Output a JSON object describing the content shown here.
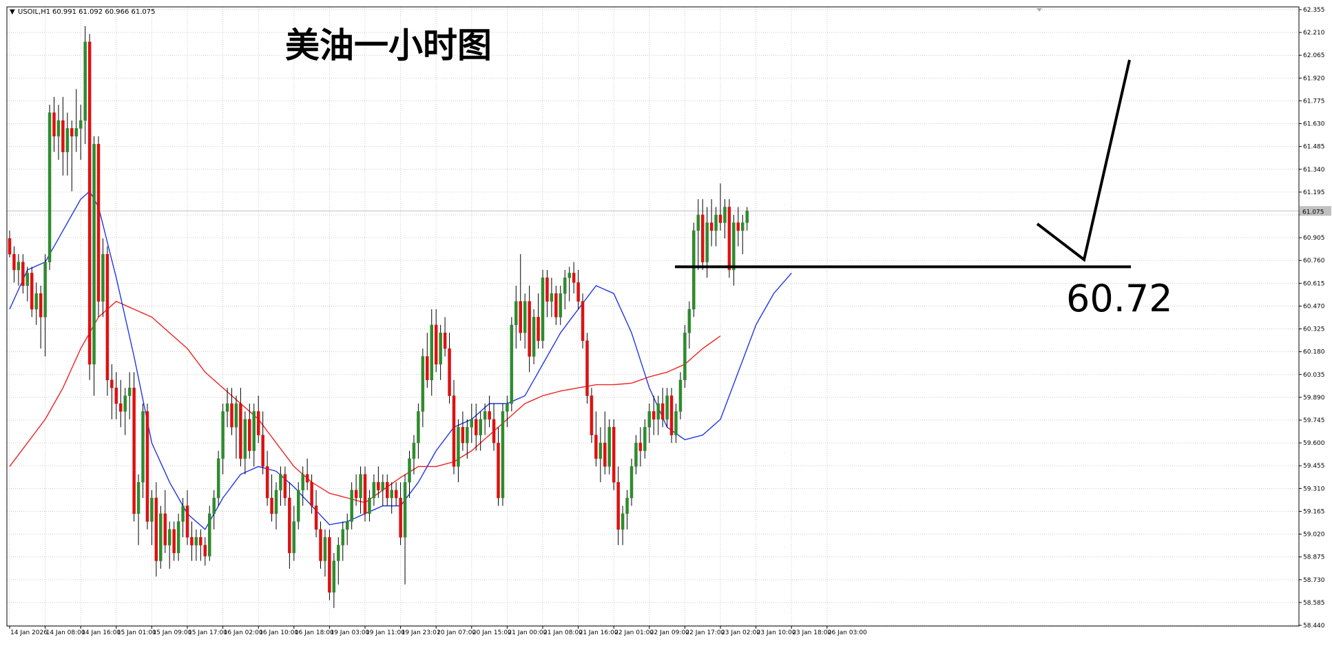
{
  "header": {
    "symbol": "USOIL,H1",
    "ohlc": "60.991 61.092 60.966 61.075",
    "title": "美油一小时图"
  },
  "annotation": {
    "level_label": "60.72",
    "level_value": 60.72
  },
  "colors": {
    "up": "#2e8b2e",
    "down": "#dd1111",
    "ma_fast": "#1f35e6",
    "ma_slow": "#ee2222",
    "grid": "#c9c9c9",
    "annotation": "#000000",
    "current_price_line": "#c0c0c0"
  },
  "chart_data": {
    "type": "candlestick",
    "timeframe": "H1",
    "ylim": [
      58.44,
      62.38
    ],
    "y_ticks": [
      62.355,
      62.21,
      62.065,
      61.92,
      61.775,
      61.63,
      61.485,
      61.34,
      61.195,
      61.05,
      60.905,
      60.76,
      60.615,
      60.47,
      60.325,
      60.18,
      60.035,
      59.89,
      59.745,
      59.6,
      59.455,
      59.31,
      59.165,
      59.02,
      58.875,
      58.73,
      58.585,
      58.44
    ],
    "y_tick_labels": [
      "62.355",
      "62.210",
      "62.065",
      "61.920",
      "61.775",
      "61.630",
      "61.485",
      "61.340",
      "61.195",
      "",
      "60.905",
      "60.760",
      "60.615",
      "60.470",
      "60.325",
      "60.180",
      "60.035",
      "59.890",
      "59.745",
      "59.600",
      "59.455",
      "59.310",
      "59.165",
      "59.020",
      "58.875",
      "58.730",
      "58.585",
      "58.440"
    ],
    "current_price": 61.075,
    "current_price_label": "61.075",
    "x_labels": [
      {
        "i": 0,
        "label": "14 Jan 2026"
      },
      {
        "i": 8,
        "label": "14 Jan 08:00"
      },
      {
        "i": 16,
        "label": "14 Jan 16:00"
      },
      {
        "i": 24,
        "label": "15 Jan 01:00"
      },
      {
        "i": 32,
        "label": "15 Jan 09:00"
      },
      {
        "i": 40,
        "label": "15 Jan 17:00"
      },
      {
        "i": 48,
        "label": "16 Jan 02:00"
      },
      {
        "i": 56,
        "label": "16 Jan 10:00"
      },
      {
        "i": 64,
        "label": "16 Jan 18:00"
      },
      {
        "i": 72,
        "label": "19 Jan 03:00"
      },
      {
        "i": 80,
        "label": "19 Jan 11:00"
      },
      {
        "i": 88,
        "label": "19 Jan 23:01"
      },
      {
        "i": 96,
        "label": "20 Jan 07:00"
      },
      {
        "i": 104,
        "label": "20 Jan 15:00"
      },
      {
        "i": 112,
        "label": "21 Jan 00:00"
      },
      {
        "i": 120,
        "label": "21 Jan 08:00"
      },
      {
        "i": 128,
        "label": "21 Jan 16:00"
      },
      {
        "i": 136,
        "label": "22 Jan 01:00"
      },
      {
        "i": 144,
        "label": "22 Jan 09:00"
      },
      {
        "i": 152,
        "label": "22 Jan 17:00"
      },
      {
        "i": 160,
        "label": "23 Jan 02:00"
      },
      {
        "i": 168,
        "label": "23 Jan 10:00"
      },
      {
        "i": 176,
        "label": "23 Jan 18:00"
      },
      {
        "i": 184,
        "label": "26 Jan 03:00"
      }
    ],
    "candles": [
      [
        60.9,
        60.95,
        60.78,
        60.8
      ],
      [
        60.8,
        60.85,
        60.62,
        60.7
      ],
      [
        60.7,
        60.8,
        60.6,
        60.75
      ],
      [
        60.75,
        60.8,
        60.55,
        60.6
      ],
      [
        60.6,
        60.72,
        60.5,
        60.68
      ],
      [
        60.68,
        60.72,
        60.4,
        60.45
      ],
      [
        60.45,
        60.62,
        60.35,
        60.55
      ],
      [
        60.55,
        60.6,
        60.2,
        60.4
      ],
      [
        60.4,
        60.8,
        60.15,
        60.75
      ],
      [
        60.75,
        61.75,
        60.7,
        61.7
      ],
      [
        61.7,
        61.8,
        61.45,
        61.55
      ],
      [
        61.55,
        61.75,
        61.4,
        61.65
      ],
      [
        61.65,
        61.8,
        61.3,
        61.45
      ],
      [
        61.45,
        61.7,
        61.3,
        61.6
      ],
      [
        61.6,
        61.65,
        61.2,
        61.55
      ],
      [
        61.55,
        61.85,
        61.45,
        61.6
      ],
      [
        61.6,
        61.75,
        61.4,
        61.65
      ],
      [
        61.65,
        62.25,
        61.5,
        62.15
      ],
      [
        62.15,
        62.2,
        60.0,
        60.1
      ],
      [
        60.1,
        61.55,
        59.9,
        61.5
      ],
      [
        61.5,
        61.55,
        60.4,
        60.5
      ],
      [
        60.5,
        60.9,
        60.4,
        60.8
      ],
      [
        60.8,
        60.85,
        59.9,
        60.0
      ],
      [
        60.0,
        60.1,
        59.75,
        59.95
      ],
      [
        59.95,
        60.05,
        59.75,
        59.85
      ],
      [
        59.85,
        60.0,
        59.7,
        59.8
      ],
      [
        59.8,
        59.95,
        59.65,
        59.9
      ],
      [
        59.9,
        60.05,
        59.75,
        59.95
      ],
      [
        59.95,
        60.05,
        59.1,
        59.15
      ],
      [
        59.15,
        59.4,
        58.95,
        59.35
      ],
      [
        59.35,
        59.85,
        59.25,
        59.8
      ],
      [
        59.8,
        59.85,
        59.05,
        59.1
      ],
      [
        59.1,
        59.3,
        58.95,
        59.25
      ],
      [
        59.25,
        59.35,
        58.75,
        58.85
      ],
      [
        58.85,
        59.2,
        58.8,
        59.15
      ],
      [
        59.15,
        59.3,
        58.9,
        58.95
      ],
      [
        58.95,
        59.1,
        58.8,
        59.05
      ],
      [
        59.05,
        59.1,
        58.85,
        58.9
      ],
      [
        58.9,
        59.15,
        58.85,
        59.1
      ],
      [
        59.1,
        59.25,
        59.0,
        59.2
      ],
      [
        59.2,
        59.3,
        58.95,
        59.0
      ],
      [
        59.0,
        59.1,
        58.85,
        58.95
      ],
      [
        58.95,
        59.05,
        58.85,
        59.0
      ],
      [
        59.0,
        59.05,
        58.85,
        58.95
      ],
      [
        58.95,
        59.0,
        58.82,
        58.88
      ],
      [
        58.88,
        59.2,
        58.85,
        59.15
      ],
      [
        59.15,
        59.3,
        59.05,
        59.25
      ],
      [
        59.25,
        59.55,
        59.2,
        59.5
      ],
      [
        59.5,
        59.85,
        59.4,
        59.8
      ],
      [
        59.8,
        59.95,
        59.7,
        59.85
      ],
      [
        59.85,
        59.95,
        59.65,
        59.7
      ],
      [
        59.7,
        59.9,
        59.5,
        59.85
      ],
      [
        59.85,
        59.95,
        59.45,
        59.5
      ],
      [
        59.5,
        59.8,
        59.4,
        59.75
      ],
      [
        59.75,
        59.85,
        59.5,
        59.55
      ],
      [
        59.55,
        59.85,
        59.45,
        59.8
      ],
      [
        59.8,
        59.9,
        59.6,
        59.65
      ],
      [
        59.65,
        59.8,
        59.4,
        59.45
      ],
      [
        59.45,
        59.55,
        59.2,
        59.25
      ],
      [
        59.25,
        59.4,
        59.1,
        59.15
      ],
      [
        59.15,
        59.35,
        59.05,
        59.3
      ],
      [
        59.3,
        59.45,
        59.2,
        59.4
      ],
      [
        59.4,
        59.45,
        59.2,
        59.25
      ],
      [
        59.25,
        59.35,
        58.8,
        58.9
      ],
      [
        58.9,
        59.2,
        58.85,
        59.1
      ],
      [
        59.1,
        59.35,
        59.05,
        59.3
      ],
      [
        59.3,
        59.45,
        59.2,
        59.4
      ],
      [
        59.4,
        59.5,
        59.3,
        59.35
      ],
      [
        59.35,
        59.4,
        59.15,
        59.2
      ],
      [
        59.2,
        59.3,
        59.0,
        59.05
      ],
      [
        59.05,
        59.1,
        58.8,
        58.85
      ],
      [
        58.85,
        59.05,
        58.75,
        59.0
      ],
      [
        59.0,
        59.05,
        58.6,
        58.65
      ],
      [
        58.65,
        58.9,
        58.55,
        58.85
      ],
      [
        58.85,
        59.0,
        58.7,
        58.95
      ],
      [
        58.95,
        59.1,
        58.85,
        59.05
      ],
      [
        59.05,
        59.15,
        58.95,
        59.1
      ],
      [
        59.1,
        59.35,
        59.05,
        59.3
      ],
      [
        59.3,
        59.4,
        59.2,
        59.25
      ],
      [
        59.25,
        59.45,
        59.15,
        59.4
      ],
      [
        59.4,
        59.45,
        59.1,
        59.15
      ],
      [
        59.15,
        59.3,
        59.1,
        59.25
      ],
      [
        59.25,
        59.4,
        59.2,
        59.35
      ],
      [
        59.35,
        59.45,
        59.25,
        59.3
      ],
      [
        59.3,
        59.4,
        59.2,
        59.35
      ],
      [
        59.35,
        59.4,
        59.2,
        59.25
      ],
      [
        59.25,
        59.35,
        59.15,
        59.3
      ],
      [
        59.3,
        59.35,
        59.2,
        59.25
      ],
      [
        59.25,
        59.35,
        58.95,
        59.0
      ],
      [
        59.0,
        59.4,
        58.7,
        59.35
      ],
      [
        59.35,
        59.55,
        59.25,
        59.5
      ],
      [
        59.5,
        59.65,
        59.4,
        59.6
      ],
      [
        59.6,
        59.85,
        59.5,
        59.8
      ],
      [
        59.8,
        60.2,
        59.7,
        60.15
      ],
      [
        60.15,
        60.3,
        59.95,
        60.0
      ],
      [
        60.0,
        60.45,
        59.9,
        60.35
      ],
      [
        60.35,
        60.45,
        60.05,
        60.1
      ],
      [
        60.1,
        60.35,
        60.0,
        60.3
      ],
      [
        60.3,
        60.4,
        60.15,
        60.2
      ],
      [
        60.2,
        60.3,
        59.85,
        59.9
      ],
      [
        59.9,
        60.0,
        59.4,
        59.45
      ],
      [
        59.45,
        59.75,
        59.35,
        59.7
      ],
      [
        59.7,
        59.8,
        59.55,
        59.6
      ],
      [
        59.6,
        59.75,
        59.5,
        59.7
      ],
      [
        59.7,
        59.85,
        59.6,
        59.75
      ],
      [
        59.75,
        59.85,
        59.55,
        59.65
      ],
      [
        59.65,
        59.8,
        59.55,
        59.75
      ],
      [
        59.75,
        59.85,
        59.65,
        59.8
      ],
      [
        59.8,
        59.9,
        59.7,
        59.75
      ],
      [
        59.75,
        59.85,
        59.55,
        59.6
      ],
      [
        59.6,
        59.7,
        59.2,
        59.25
      ],
      [
        59.25,
        59.85,
        59.2,
        59.8
      ],
      [
        59.8,
        59.9,
        59.7,
        59.85
      ],
      [
        59.85,
        60.4,
        59.8,
        60.35
      ],
      [
        60.35,
        60.6,
        60.2,
        60.5
      ],
      [
        60.5,
        60.8,
        60.25,
        60.3
      ],
      [
        60.3,
        60.55,
        60.2,
        60.5
      ],
      [
        60.5,
        60.6,
        60.05,
        60.15
      ],
      [
        60.15,
        60.45,
        60.1,
        60.4
      ],
      [
        60.4,
        60.55,
        60.2,
        60.25
      ],
      [
        60.25,
        60.7,
        60.2,
        60.65
      ],
      [
        60.65,
        60.7,
        60.4,
        60.5
      ],
      [
        60.5,
        60.65,
        60.4,
        60.55
      ],
      [
        60.55,
        60.6,
        60.35,
        60.4
      ],
      [
        60.4,
        60.6,
        60.35,
        60.55
      ],
      [
        60.55,
        60.7,
        60.45,
        60.65
      ],
      [
        60.65,
        60.72,
        60.5,
        60.68
      ],
      [
        60.68,
        60.75,
        60.55,
        60.62
      ],
      [
        60.62,
        60.7,
        60.45,
        60.5
      ],
      [
        60.5,
        60.55,
        60.2,
        60.25
      ],
      [
        60.25,
        60.3,
        59.85,
        59.9
      ],
      [
        59.9,
        59.95,
        59.6,
        59.65
      ],
      [
        59.65,
        59.8,
        59.45,
        59.5
      ],
      [
        59.5,
        59.7,
        59.35,
        59.6
      ],
      [
        59.6,
        59.8,
        59.4,
        59.45
      ],
      [
        59.45,
        59.75,
        59.4,
        59.7
      ],
      [
        59.7,
        59.75,
        59.3,
        59.35
      ],
      [
        59.35,
        59.45,
        58.95,
        59.05
      ],
      [
        59.05,
        59.2,
        58.95,
        59.15
      ],
      [
        59.15,
        59.3,
        59.05,
        59.25
      ],
      [
        59.25,
        59.5,
        59.2,
        59.45
      ],
      [
        59.45,
        59.65,
        59.4,
        59.6
      ],
      [
        59.6,
        59.7,
        59.45,
        59.55
      ],
      [
        59.55,
        59.75,
        59.5,
        59.7
      ],
      [
        59.7,
        59.85,
        59.6,
        59.8
      ],
      [
        59.8,
        59.9,
        59.65,
        59.75
      ],
      [
        59.75,
        59.9,
        59.65,
        59.85
      ],
      [
        59.85,
        59.95,
        59.7,
        59.75
      ],
      [
        59.75,
        59.95,
        59.7,
        59.9
      ],
      [
        59.9,
        59.95,
        59.6,
        59.65
      ],
      [
        59.65,
        59.85,
        59.6,
        59.8
      ],
      [
        59.8,
        60.05,
        59.75,
        60.0
      ],
      [
        60.0,
        60.35,
        59.95,
        60.3
      ],
      [
        60.3,
        60.5,
        60.2,
        60.45
      ],
      [
        60.45,
        61.0,
        60.4,
        60.95
      ],
      [
        60.95,
        61.15,
        60.7,
        61.05
      ],
      [
        61.05,
        61.15,
        60.7,
        60.75
      ],
      [
        60.75,
        61.1,
        60.65,
        61.0
      ],
      [
        61.0,
        61.15,
        60.85,
        60.95
      ],
      [
        60.95,
        61.1,
        60.85,
        61.05
      ],
      [
        61.05,
        61.25,
        60.95,
        61.0
      ],
      [
        61.0,
        61.15,
        60.9,
        61.1
      ],
      [
        61.1,
        61.15,
        60.65,
        60.7
      ],
      [
        60.7,
        61.05,
        60.6,
        61.0
      ],
      [
        61.0,
        61.1,
        60.85,
        60.95
      ],
      [
        60.95,
        61.05,
        60.8,
        61.0
      ],
      [
        61.0,
        61.1,
        60.95,
        61.075
      ]
    ],
    "ma_fast": {
      "anchors": [
        [
          0,
          60.45
        ],
        [
          4,
          60.7
        ],
        [
          8,
          60.75
        ],
        [
          12,
          60.95
        ],
        [
          16,
          61.15
        ],
        [
          18,
          61.2
        ],
        [
          20,
          61.1
        ],
        [
          24,
          60.65
        ],
        [
          28,
          60.15
        ],
        [
          32,
          59.6
        ],
        [
          36,
          59.35
        ],
        [
          40,
          59.15
        ],
        [
          44,
          59.05
        ],
        [
          48,
          59.25
        ],
        [
          52,
          59.4
        ],
        [
          56,
          59.45
        ],
        [
          60,
          59.42
        ],
        [
          64,
          59.32
        ],
        [
          68,
          59.2
        ],
        [
          72,
          59.08
        ],
        [
          76,
          59.1
        ],
        [
          80,
          59.15
        ],
        [
          84,
          59.2
        ],
        [
          88,
          59.2
        ],
        [
          92,
          59.35
        ],
        [
          96,
          59.55
        ],
        [
          100,
          59.7
        ],
        [
          104,
          59.75
        ],
        [
          108,
          59.85
        ],
        [
          112,
          59.85
        ],
        [
          116,
          59.9
        ],
        [
          120,
          60.1
        ],
        [
          124,
          60.3
        ],
        [
          128,
          60.45
        ],
        [
          132,
          60.6
        ],
        [
          136,
          60.55
        ],
        [
          140,
          60.3
        ],
        [
          144,
          59.95
        ],
        [
          148,
          59.7
        ],
        [
          152,
          59.62
        ],
        [
          156,
          59.65
        ],
        [
          160,
          59.75
        ],
        [
          164,
          60.05
        ],
        [
          168,
          60.35
        ],
        [
          172,
          60.55
        ],
        [
          176,
          60.68
        ]
      ]
    },
    "ma_slow": {
      "anchors": [
        [
          0,
          59.45
        ],
        [
          4,
          59.6
        ],
        [
          8,
          59.75
        ],
        [
          12,
          59.95
        ],
        [
          16,
          60.2
        ],
        [
          20,
          60.4
        ],
        [
          24,
          60.5
        ],
        [
          28,
          60.45
        ],
        [
          32,
          60.4
        ],
        [
          36,
          60.3
        ],
        [
          40,
          60.2
        ],
        [
          44,
          60.05
        ],
        [
          48,
          59.95
        ],
        [
          52,
          59.85
        ],
        [
          56,
          59.75
        ],
        [
          60,
          59.6
        ],
        [
          64,
          59.45
        ],
        [
          68,
          59.35
        ],
        [
          72,
          59.28
        ],
        [
          76,
          59.25
        ],
        [
          80,
          59.22
        ],
        [
          84,
          59.3
        ],
        [
          88,
          59.38
        ],
        [
          92,
          59.45
        ],
        [
          96,
          59.45
        ],
        [
          100,
          59.48
        ],
        [
          104,
          59.55
        ],
        [
          108,
          59.65
        ],
        [
          112,
          59.75
        ],
        [
          116,
          59.85
        ],
        [
          120,
          59.9
        ],
        [
          124,
          59.93
        ],
        [
          128,
          59.95
        ],
        [
          132,
          59.97
        ],
        [
          136,
          59.97
        ],
        [
          140,
          59.98
        ],
        [
          144,
          60.02
        ],
        [
          148,
          60.05
        ],
        [
          152,
          60.1
        ],
        [
          156,
          60.2
        ],
        [
          160,
          60.28
        ]
      ]
    }
  }
}
